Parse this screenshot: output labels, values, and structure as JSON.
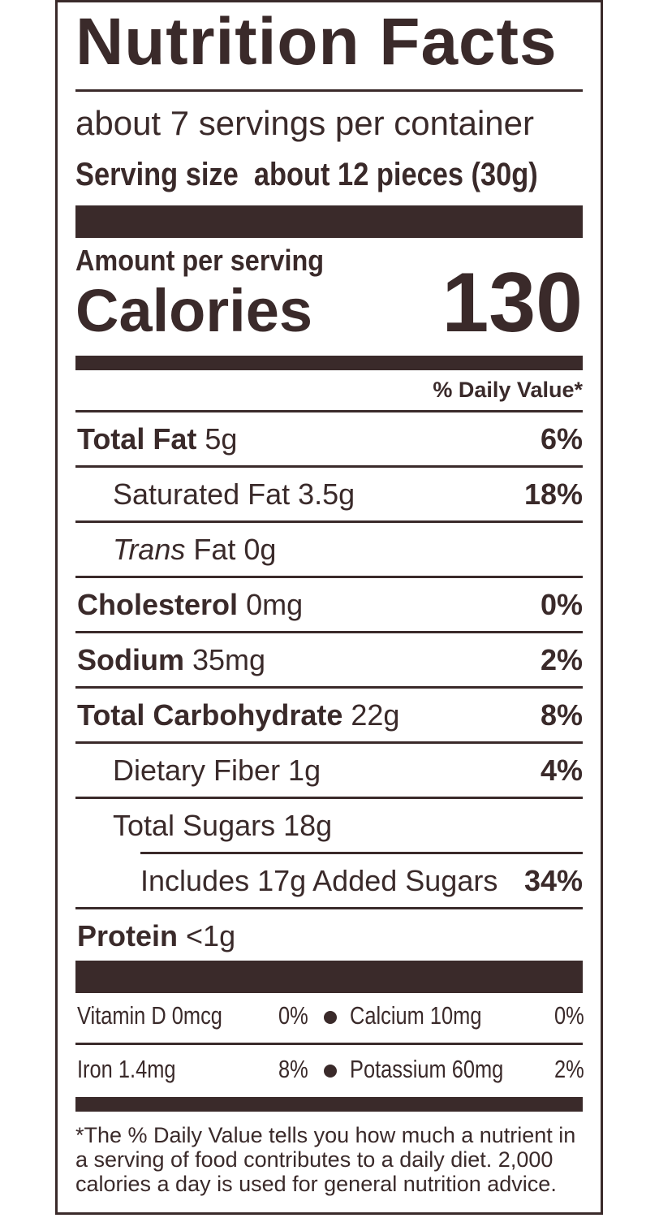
{
  "label": {
    "title": "Nutrition Facts",
    "servings": "about 7 servings per container",
    "serving_size_label": "Serving size",
    "serving_size_value": "about 12 pieces (30g)",
    "amount_per_serving": "Amount per serving",
    "calories_label": "Calories",
    "calories_value": "130",
    "dv_header": "% Daily Value*",
    "nutrients": [
      {
        "name": "Total Fat",
        "amount": "5g",
        "pct": "6%"
      },
      {
        "name": "Saturated Fat 3.5g",
        "amount": "",
        "pct": "18%"
      },
      {
        "name_italic": "Trans",
        "name_rest": " Fat 0g",
        "pct": ""
      },
      {
        "name": "Cholesterol",
        "amount": "0mg",
        "pct": "0%"
      },
      {
        "name": "Sodium",
        "amount": "35mg",
        "pct": "2%"
      },
      {
        "name": "Total Carbohydrate",
        "amount": "22g",
        "pct": "8%"
      },
      {
        "name": "Dietary Fiber 1g",
        "amount": "",
        "pct": "4%"
      },
      {
        "name": "Total Sugars 18g",
        "amount": "",
        "pct": ""
      },
      {
        "name": "Includes 17g Added Sugars",
        "amount": "",
        "pct": "34%"
      },
      {
        "name": "Protein",
        "amount": "<1g",
        "pct": ""
      }
    ],
    "vitamins": [
      {
        "left": "Vitamin D 0mcg",
        "left_pct": "0%",
        "right": "Calcium 10mg",
        "right_pct": "0%"
      },
      {
        "left": "Iron 1.4mg",
        "left_pct": "8%",
        "right": "Potassium 60mg",
        "right_pct": "2%"
      }
    ],
    "footnote": "*The % Daily Value tells you how much a nutrient in a serving of food contributes to a daily diet. 2,000 calories a day is used for general nutrition advice."
  },
  "colors": {
    "ink": "#3a2a2a",
    "background": "#ffffff"
  }
}
